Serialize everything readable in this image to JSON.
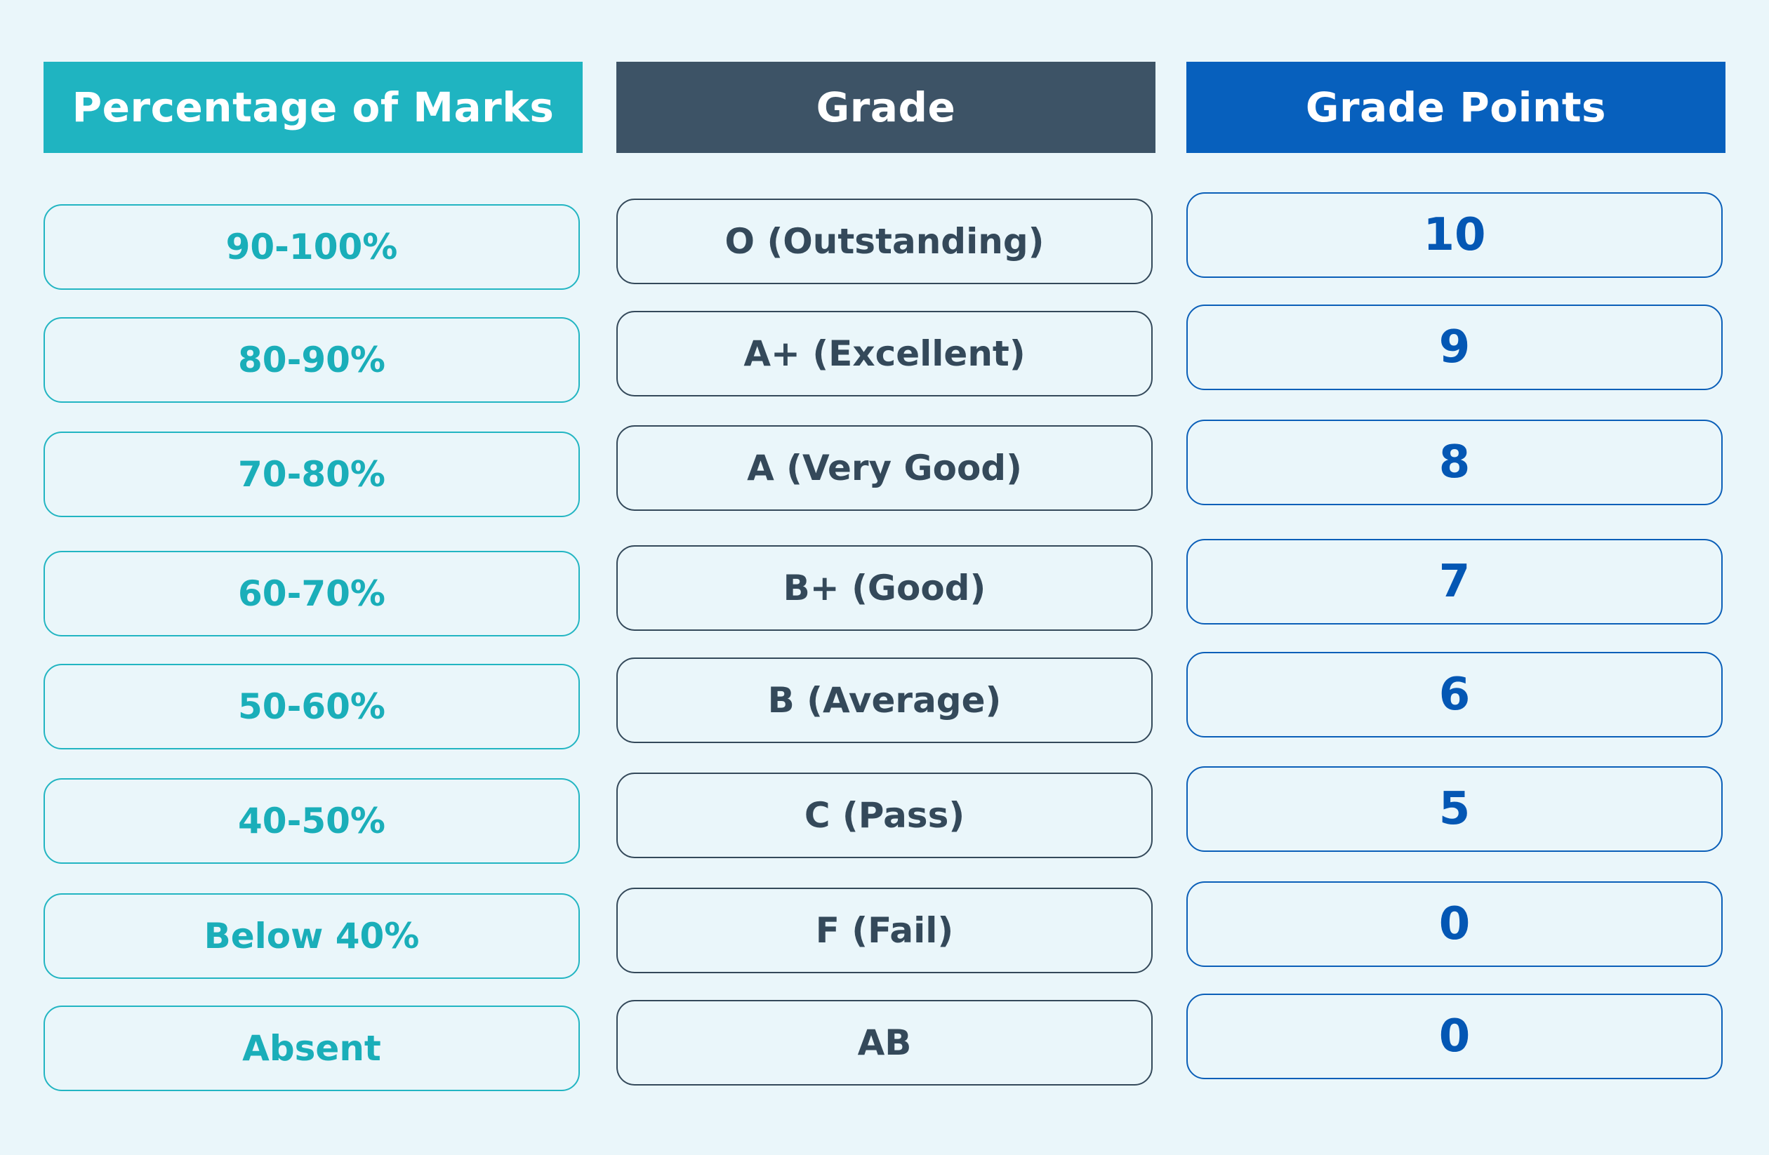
{
  "headers": {
    "percentage": "Percentage of Marks",
    "grade": "Grade",
    "points": "Grade Points"
  },
  "rows": [
    {
      "percentage": "90-100%",
      "grade": "O (Outstanding)",
      "points": "10"
    },
    {
      "percentage": "80-90%",
      "grade": "A+ (Excellent)",
      "points": "9"
    },
    {
      "percentage": "70-80%",
      "grade": "A (Very Good)",
      "points": "8"
    },
    {
      "percentage": "60-70%",
      "grade": "B+ (Good)",
      "points": "7"
    },
    {
      "percentage": "50-60%",
      "grade": "B (Average)",
      "points": "6"
    },
    {
      "percentage": "40-50%",
      "grade": "C (Pass)",
      "points": "5"
    },
    {
      "percentage": "Below 40%",
      "grade": "F (Fail)",
      "points": "0"
    },
    {
      "percentage": "Absent",
      "grade": "AB",
      "points": "0"
    }
  ],
  "colors": {
    "background": "#eaf6fa",
    "percentage_accent": "#1fb4c1",
    "grade_accent": "#3d5366",
    "points_accent": "#0760bd"
  }
}
